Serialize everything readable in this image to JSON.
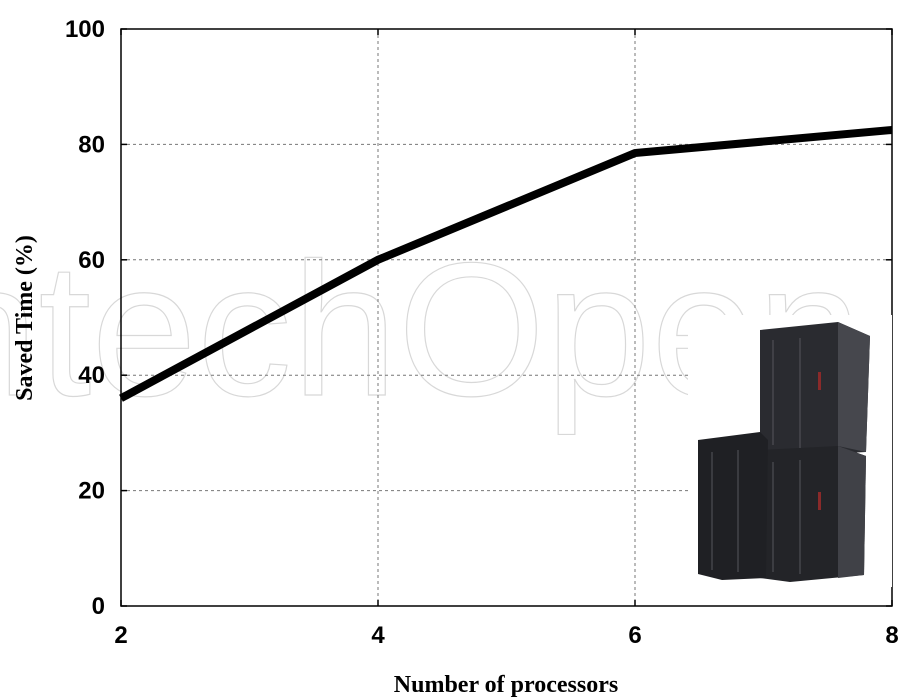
{
  "chart_data": {
    "type": "line",
    "x": [
      2,
      4,
      6,
      8
    ],
    "series": [
      {
        "values": [
          36,
          60,
          78.5,
          82.5
        ],
        "color": "#000000"
      }
    ],
    "xlabel": "Number of processors",
    "ylabel": "Saved Time (%)",
    "xlim": [
      2,
      8
    ],
    "ylim": [
      0,
      100
    ],
    "xticks": [
      "2",
      "4",
      "6",
      "8"
    ],
    "yticks": [
      "0",
      "20",
      "40",
      "60",
      "80",
      "100"
    ],
    "grid": true,
    "gridline_color": "#777777"
  },
  "watermark": "IntechOpen"
}
